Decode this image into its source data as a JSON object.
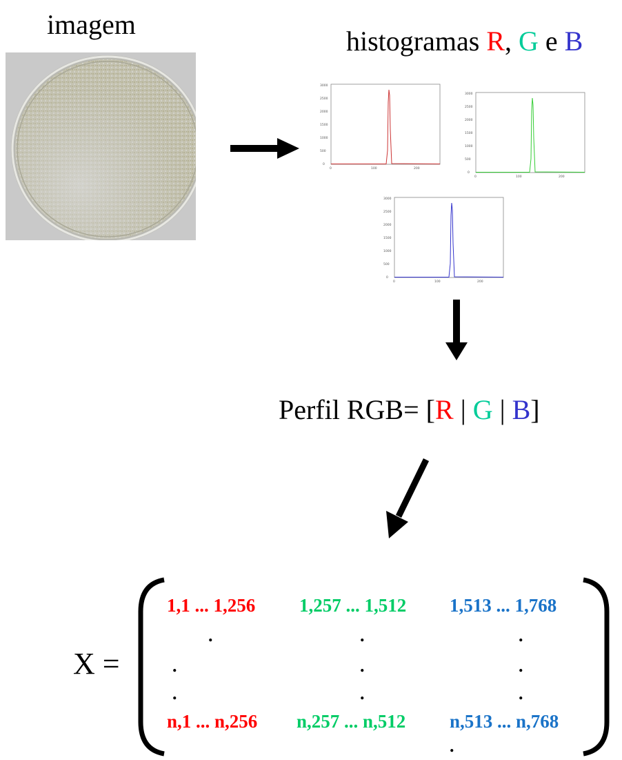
{
  "labels": {
    "image": "imagem",
    "histograms_prefix": "histogramas ",
    "histograms_r": "R",
    "histograms_sep": ", ",
    "histograms_g": "G",
    "histograms_and": " e ",
    "histograms_b": "B"
  },
  "colors": {
    "red": "#ff0000",
    "green": "#00cc99",
    "blue": "#3333cc"
  },
  "histograms": [
    {
      "name": "R",
      "color": "#cc3333",
      "yticks": [
        "3000",
        "2500",
        "2000",
        "1500",
        "1000",
        "500",
        "0"
      ],
      "xticks": [
        "0",
        "100",
        "200"
      ]
    },
    {
      "name": "G",
      "color": "#33cc33",
      "yticks": [
        "3000",
        "2500",
        "2000",
        "1500",
        "1000",
        "500",
        "0"
      ],
      "xticks": [
        "0",
        "100",
        "200"
      ]
    },
    {
      "name": "B",
      "color": "#3333cc",
      "yticks": [
        "3000",
        "2500",
        "2000",
        "1500",
        "1000",
        "500",
        "0"
      ],
      "xticks": [
        "0",
        "100",
        "200"
      ]
    }
  ],
  "profile": {
    "prefix": "Perfil RGB= [",
    "r": "R",
    "sep1": " | ",
    "g": "G",
    "sep2": " | ",
    "b": "B",
    "suffix": "]"
  },
  "matrix": {
    "label": "X =",
    "row_first": {
      "red": "1,1 ... 1,256",
      "green": "1,257 ... 1,512",
      "blue": "1,513 ... 1,768"
    },
    "row_last": {
      "red": "n,1 ... n,256",
      "green": "n,257 ... n,512",
      "blue": "n,513 ... n,768"
    },
    "dot": "."
  }
}
